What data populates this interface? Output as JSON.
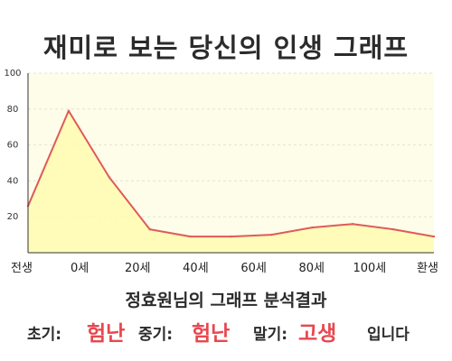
{
  "page": {
    "title": "재미로 보는 당신의 인생 그래프",
    "subtitle": "정효원님의 그래프 분석결과",
    "summary": {
      "early_label": "초기:",
      "early_value": "험난",
      "mid_label": "중기:",
      "mid_value": "험난",
      "late_label": "말기:",
      "late_value": "고생",
      "ending": "입니다"
    }
  },
  "colors": {
    "line": "#e05a5a",
    "fill": "#fffcb0",
    "plot_bg": "#fdfde9",
    "grid": "#e4e4d6",
    "emphasis": "#e8474f"
  },
  "chart_data": {
    "type": "area",
    "title": "재미로 보는 당신의 인생 그래프",
    "xlabel": "",
    "ylabel": "",
    "x_ticks": [
      "전생",
      "0세",
      "20세",
      "40세",
      "60세",
      "80세",
      "100세",
      "환생"
    ],
    "y_ticks": [
      20,
      40,
      60,
      80,
      100
    ],
    "ylim": [
      0,
      100
    ],
    "grid": true,
    "series": [
      {
        "values": [
          26,
          79,
          42,
          13,
          9,
          9,
          10,
          14,
          16,
          13,
          9
        ]
      }
    ]
  }
}
